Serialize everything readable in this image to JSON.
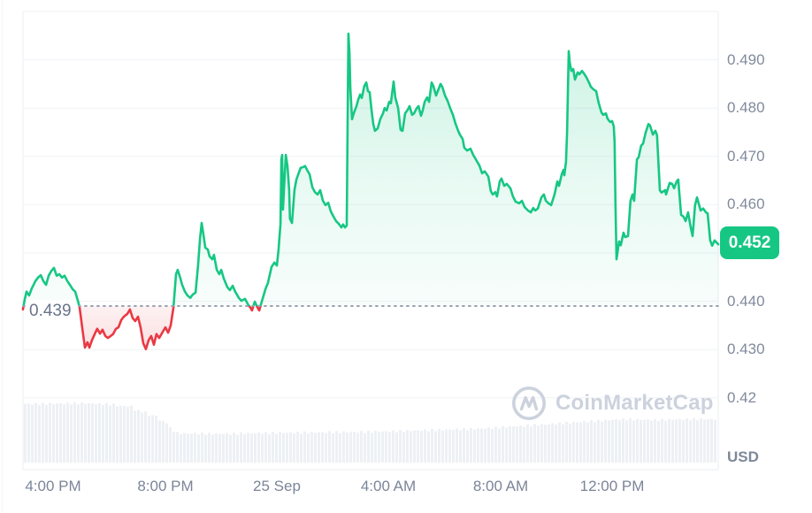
{
  "chart": {
    "unit": "USD",
    "baseline_label": "0.439",
    "last_price_label": "0.452",
    "watermark": "CoinMarketCap",
    "colors": {
      "up": "#16c784",
      "down": "#ea3943",
      "badge": "#16c784",
      "grid": "#f0f2f6",
      "border": "#e9edf2",
      "axis_text": "#808a9d",
      "baseline_text": "#69758a",
      "baseline_dots": "#99a1b0",
      "watermark": "#ccd2dd",
      "volume": "#edf0f4"
    },
    "y_ticks": [
      {
        "label": "0.490",
        "value": 0.49
      },
      {
        "label": "0.480",
        "value": 0.48
      },
      {
        "label": "0.470",
        "value": 0.47
      },
      {
        "label": "0.460",
        "value": 0.46
      },
      {
        "label": "0.440",
        "value": 0.44
      },
      {
        "label": "0.430",
        "value": 0.43
      },
      {
        "label": "0.42",
        "value": 0.42
      }
    ],
    "x_ticks": [
      {
        "label": "4:00 PM",
        "t": -8
      },
      {
        "label": "8:00 PM",
        "t": -4
      },
      {
        "label": "25 Sep",
        "t": 0
      },
      {
        "label": "4:00 AM",
        "t": 4
      },
      {
        "label": "8:00 AM",
        "t": 8
      },
      {
        "label": "12:00 PM",
        "t": 12
      }
    ]
  },
  "chart_data": {
    "type": "line",
    "title": "",
    "xlabel": "",
    "ylabel": "USD",
    "x_unit": "hours relative to 25 Sep 00:00",
    "x_range": [
      -9.09,
      15.8
    ],
    "y_range_gridlines": [
      0.5,
      0.49,
      0.48,
      0.47,
      0.46,
      0.45,
      0.44,
      0.43,
      0.42
    ],
    "baseline_value": 0.439,
    "last_price": 0.452,
    "legend": [],
    "grid": true,
    "points": [
      [
        -9.09,
        0.4383
      ],
      [
        -9.02,
        0.4405
      ],
      [
        -8.96,
        0.442
      ],
      [
        -8.87,
        0.4412
      ],
      [
        -8.77,
        0.4427
      ],
      [
        -8.64,
        0.4442
      ],
      [
        -8.55,
        0.4449
      ],
      [
        -8.45,
        0.4454
      ],
      [
        -8.36,
        0.4442
      ],
      [
        -8.26,
        0.4434
      ],
      [
        -8.17,
        0.4453
      ],
      [
        -8.07,
        0.4463
      ],
      [
        -7.98,
        0.4469
      ],
      [
        -7.88,
        0.4453
      ],
      [
        -7.79,
        0.4456
      ],
      [
        -7.69,
        0.4449
      ],
      [
        -7.6,
        0.4453
      ],
      [
        -7.5,
        0.4442
      ],
      [
        -7.41,
        0.4434
      ],
      [
        -7.31,
        0.4425
      ],
      [
        -7.22,
        0.442
      ],
      [
        -7.12,
        0.4401
      ],
      [
        -7.06,
        0.4387
      ],
      [
        -6.97,
        0.4346
      ],
      [
        -6.87,
        0.4304
      ],
      [
        -6.78,
        0.4315
      ],
      [
        -6.71,
        0.4304
      ],
      [
        -6.62,
        0.4319
      ],
      [
        -6.52,
        0.4332
      ],
      [
        -6.43,
        0.4343
      ],
      [
        -6.33,
        0.4333
      ],
      [
        -6.24,
        0.4341
      ],
      [
        -6.14,
        0.4328
      ],
      [
        -6.05,
        0.4324
      ],
      [
        -5.95,
        0.4328
      ],
      [
        -5.86,
        0.4332
      ],
      [
        -5.76,
        0.4343
      ],
      [
        -5.67,
        0.4346
      ],
      [
        -5.57,
        0.4361
      ],
      [
        -5.48,
        0.4368
      ],
      [
        -5.35,
        0.4374
      ],
      [
        -5.26,
        0.4383
      ],
      [
        -5.16,
        0.4365
      ],
      [
        -5.07,
        0.4359
      ],
      [
        -4.97,
        0.4368
      ],
      [
        -4.88,
        0.4346
      ],
      [
        -4.78,
        0.4313
      ],
      [
        -4.69,
        0.4301
      ],
      [
        -4.59,
        0.4319
      ],
      [
        -4.5,
        0.4328
      ],
      [
        -4.4,
        0.431
      ],
      [
        -4.31,
        0.4332
      ],
      [
        -4.21,
        0.4324
      ],
      [
        -4.08,
        0.4337
      ],
      [
        -3.99,
        0.4346
      ],
      [
        -3.89,
        0.4335
      ],
      [
        -3.8,
        0.435
      ],
      [
        -3.7,
        0.4387
      ],
      [
        -3.61,
        0.4456
      ],
      [
        -3.55,
        0.4465
      ],
      [
        -3.45,
        0.4447
      ],
      [
        -3.39,
        0.4434
      ],
      [
        -3.29,
        0.442
      ],
      [
        -3.2,
        0.4412
      ],
      [
        -3.1,
        0.4407
      ],
      [
        -3.01,
        0.4414
      ],
      [
        -2.91,
        0.4418
      ],
      [
        -2.82,
        0.4474
      ],
      [
        -2.75,
        0.4529
      ],
      [
        -2.69,
        0.4562
      ],
      [
        -2.63,
        0.4539
      ],
      [
        -2.56,
        0.4511
      ],
      [
        -2.47,
        0.4507
      ],
      [
        -2.41,
        0.4493
      ],
      [
        -2.31,
        0.4487
      ],
      [
        -2.25,
        0.4496
      ],
      [
        -2.15,
        0.4465
      ],
      [
        -2.06,
        0.4456
      ],
      [
        -1.99,
        0.4465
      ],
      [
        -1.9,
        0.4447
      ],
      [
        -1.77,
        0.4429
      ],
      [
        -1.68,
        0.4423
      ],
      [
        -1.58,
        0.4432
      ],
      [
        -1.49,
        0.442
      ],
      [
        -1.36,
        0.4407
      ],
      [
        -1.27,
        0.4401
      ],
      [
        -1.14,
        0.4405
      ],
      [
        -1.04,
        0.4394
      ],
      [
        -0.95,
        0.4387
      ],
      [
        -0.89,
        0.4381
      ],
      [
        -0.79,
        0.4399
      ],
      [
        -0.7,
        0.4388
      ],
      [
        -0.63,
        0.4381
      ],
      [
        -0.54,
        0.4399
      ],
      [
        -0.41,
        0.4425
      ],
      [
        -0.32,
        0.4438
      ],
      [
        -0.19,
        0.4471
      ],
      [
        -0.09,
        0.448
      ],
      [
        0.0,
        0.4474
      ],
      [
        0.06,
        0.4507
      ],
      [
        0.13,
        0.456
      ],
      [
        0.16,
        0.4694
      ],
      [
        0.19,
        0.4703
      ],
      [
        0.22,
        0.459
      ],
      [
        0.28,
        0.4658
      ],
      [
        0.32,
        0.4703
      ],
      [
        0.38,
        0.468
      ],
      [
        0.44,
        0.463
      ],
      [
        0.47,
        0.4571
      ],
      [
        0.54,
        0.4562
      ],
      [
        0.63,
        0.463
      ],
      [
        0.7,
        0.4652
      ],
      [
        0.79,
        0.4667
      ],
      [
        0.85,
        0.4676
      ],
      [
        0.95,
        0.4678
      ],
      [
        1.01,
        0.468
      ],
      [
        1.08,
        0.4672
      ],
      [
        1.17,
        0.4663
      ],
      [
        1.27,
        0.4636
      ],
      [
        1.36,
        0.4626
      ],
      [
        1.46,
        0.4621
      ],
      [
        1.55,
        0.463
      ],
      [
        1.65,
        0.4608
      ],
      [
        1.74,
        0.4599
      ],
      [
        1.84,
        0.4604
      ],
      [
        1.93,
        0.4586
      ],
      [
        2.03,
        0.4575
      ],
      [
        2.12,
        0.4566
      ],
      [
        2.22,
        0.456
      ],
      [
        2.31,
        0.4553
      ],
      [
        2.37,
        0.4559
      ],
      [
        2.44,
        0.4553
      ],
      [
        2.5,
        0.4557
      ],
      [
        2.53,
        0.4749
      ],
      [
        2.56,
        0.4954
      ],
      [
        2.6,
        0.4914
      ],
      [
        2.63,
        0.4841
      ],
      [
        2.69,
        0.4777
      ],
      [
        2.75,
        0.4789
      ],
      [
        2.85,
        0.4804
      ],
      [
        2.91,
        0.4817
      ],
      [
        2.98,
        0.4828
      ],
      [
        3.04,
        0.4821
      ],
      [
        3.13,
        0.4846
      ],
      [
        3.2,
        0.4853
      ],
      [
        3.26,
        0.4835
      ],
      [
        3.32,
        0.4833
      ],
      [
        3.39,
        0.4795
      ],
      [
        3.45,
        0.4767
      ],
      [
        3.51,
        0.4753
      ],
      [
        3.61,
        0.4758
      ],
      [
        3.7,
        0.4777
      ],
      [
        3.8,
        0.4789
      ],
      [
        3.86,
        0.48
      ],
      [
        3.93,
        0.4795
      ],
      [
        4.02,
        0.4813
      ],
      [
        4.08,
        0.481
      ],
      [
        4.18,
        0.4855
      ],
      [
        4.24,
        0.4822
      ],
      [
        4.34,
        0.48
      ],
      [
        4.43,
        0.4755
      ],
      [
        4.5,
        0.4753
      ],
      [
        4.59,
        0.4789
      ],
      [
        4.69,
        0.4797
      ],
      [
        4.75,
        0.4804
      ],
      [
        4.84,
        0.4786
      ],
      [
        4.91,
        0.4789
      ],
      [
        5.0,
        0.4799
      ],
      [
        5.07,
        0.4804
      ],
      [
        5.16,
        0.4784
      ],
      [
        5.22,
        0.4795
      ],
      [
        5.29,
        0.4813
      ],
      [
        5.38,
        0.4822
      ],
      [
        5.45,
        0.4813
      ],
      [
        5.54,
        0.4853
      ],
      [
        5.6,
        0.4846
      ],
      [
        5.7,
        0.4826
      ],
      [
        5.76,
        0.4835
      ],
      [
        5.86,
        0.485
      ],
      [
        5.92,
        0.4844
      ],
      [
        6.02,
        0.4826
      ],
      [
        6.11,
        0.4815
      ],
      [
        6.21,
        0.4799
      ],
      [
        6.3,
        0.4786
      ],
      [
        6.4,
        0.4767
      ],
      [
        6.49,
        0.4753
      ],
      [
        6.55,
        0.4745
      ],
      [
        6.65,
        0.4736
      ],
      [
        6.71,
        0.4718
      ],
      [
        6.81,
        0.4712
      ],
      [
        6.93,
        0.4716
      ],
      [
        7.03,
        0.4703
      ],
      [
        7.12,
        0.4694
      ],
      [
        7.25,
        0.4681
      ],
      [
        7.35,
        0.4665
      ],
      [
        7.44,
        0.4669
      ],
      [
        7.57,
        0.4658
      ],
      [
        7.66,
        0.4628
      ],
      [
        7.73,
        0.4621
      ],
      [
        7.82,
        0.4626
      ],
      [
        7.88,
        0.4617
      ],
      [
        7.98,
        0.4648
      ],
      [
        8.04,
        0.4654
      ],
      [
        8.14,
        0.4639
      ],
      [
        8.23,
        0.4643
      ],
      [
        8.36,
        0.4634
      ],
      [
        8.45,
        0.4617
      ],
      [
        8.55,
        0.4606
      ],
      [
        8.68,
        0.4603
      ],
      [
        8.77,
        0.4608
      ],
      [
        8.87,
        0.4595
      ],
      [
        8.99,
        0.4588
      ],
      [
        9.09,
        0.4584
      ],
      [
        9.18,
        0.4593
      ],
      [
        9.25,
        0.4588
      ],
      [
        9.34,
        0.4592
      ],
      [
        9.47,
        0.4615
      ],
      [
        9.56,
        0.4621
      ],
      [
        9.63,
        0.4608
      ],
      [
        9.72,
        0.4603
      ],
      [
        9.82,
        0.4599
      ],
      [
        9.94,
        0.4621
      ],
      [
        10.04,
        0.4648
      ],
      [
        10.1,
        0.4639
      ],
      [
        10.2,
        0.4663
      ],
      [
        10.26,
        0.4672
      ],
      [
        10.29,
        0.4661
      ],
      [
        10.35,
        0.4689
      ],
      [
        10.39,
        0.4749
      ],
      [
        10.42,
        0.4841
      ],
      [
        10.45,
        0.4918
      ],
      [
        10.48,
        0.4896
      ],
      [
        10.54,
        0.4877
      ],
      [
        10.61,
        0.4881
      ],
      [
        10.67,
        0.4859
      ],
      [
        10.77,
        0.4874
      ],
      [
        10.83,
        0.487
      ],
      [
        10.92,
        0.4877
      ],
      [
        10.99,
        0.4872
      ],
      [
        11.08,
        0.4864
      ],
      [
        11.18,
        0.4852
      ],
      [
        11.24,
        0.4844
      ],
      [
        11.33,
        0.4839
      ],
      [
        11.43,
        0.4835
      ],
      [
        11.52,
        0.4811
      ],
      [
        11.62,
        0.4791
      ],
      [
        11.68,
        0.4786
      ],
      [
        11.78,
        0.4789
      ],
      [
        11.84,
        0.4778
      ],
      [
        11.93,
        0.4771
      ],
      [
        12.0,
        0.4773
      ],
      [
        12.06,
        0.4762
      ],
      [
        12.09,
        0.4731
      ],
      [
        12.12,
        0.4603
      ],
      [
        12.16,
        0.4487
      ],
      [
        12.25,
        0.4524
      ],
      [
        12.31,
        0.4516
      ],
      [
        12.41,
        0.4542
      ],
      [
        12.47,
        0.4533
      ],
      [
        12.57,
        0.4535
      ],
      [
        12.66,
        0.4608
      ],
      [
        12.73,
        0.4621
      ],
      [
        12.79,
        0.4608
      ],
      [
        12.89,
        0.4694
      ],
      [
        12.95,
        0.4698
      ],
      [
        13.04,
        0.4722
      ],
      [
        13.11,
        0.4727
      ],
      [
        13.2,
        0.4749
      ],
      [
        13.3,
        0.4767
      ],
      [
        13.36,
        0.4764
      ],
      [
        13.46,
        0.4745
      ],
      [
        13.55,
        0.4753
      ],
      [
        13.61,
        0.4744
      ],
      [
        13.71,
        0.463
      ],
      [
        13.77,
        0.4625
      ],
      [
        13.9,
        0.463
      ],
      [
        13.93,
        0.4621
      ],
      [
        14.06,
        0.4645
      ],
      [
        14.15,
        0.4643
      ],
      [
        14.22,
        0.4634
      ],
      [
        14.31,
        0.4648
      ],
      [
        14.37,
        0.4652
      ],
      [
        14.47,
        0.4579
      ],
      [
        14.56,
        0.4575
      ],
      [
        14.63,
        0.4566
      ],
      [
        14.72,
        0.4584
      ],
      [
        14.82,
        0.4551
      ],
      [
        14.88,
        0.4535
      ],
      [
        14.97,
        0.4599
      ],
      [
        15.04,
        0.4615
      ],
      [
        15.17,
        0.4588
      ],
      [
        15.26,
        0.4592
      ],
      [
        15.36,
        0.4584
      ],
      [
        15.42,
        0.4582
      ],
      [
        15.51,
        0.4526
      ],
      [
        15.58,
        0.4515
      ],
      [
        15.67,
        0.4526
      ],
      [
        15.8,
        0.4518
      ]
    ],
    "volume_relative": [
      [
        -9.09,
        0.99
      ],
      [
        -6.9,
        1.0
      ],
      [
        -5.86,
        0.98
      ],
      [
        -5.73,
        0.955
      ],
      [
        -5.22,
        0.95
      ],
      [
        -5.1,
        0.87
      ],
      [
        -4.78,
        0.86
      ],
      [
        -4.65,
        0.8
      ],
      [
        -4.34,
        0.79
      ],
      [
        -4.21,
        0.69
      ],
      [
        -3.96,
        0.68
      ],
      [
        -3.83,
        0.54
      ],
      [
        -3.7,
        0.53
      ],
      [
        -3.58,
        0.49
      ],
      [
        -1.68,
        0.485
      ],
      [
        -0.41,
        0.5
      ],
      [
        1.49,
        0.51
      ],
      [
        3.39,
        0.52
      ],
      [
        5.29,
        0.545
      ],
      [
        7.19,
        0.57
      ],
      [
        9.09,
        0.63
      ],
      [
        10.67,
        0.68
      ],
      [
        12.25,
        0.73
      ],
      [
        13.68,
        0.72
      ],
      [
        14.31,
        0.73
      ],
      [
        15.8,
        0.735
      ]
    ]
  }
}
